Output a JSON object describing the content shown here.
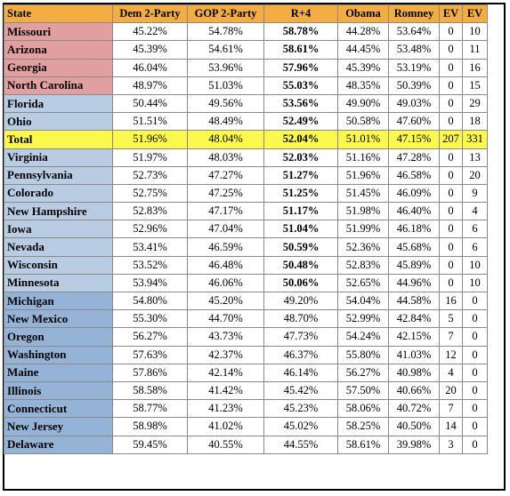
{
  "columns": [
    "State",
    "Dem 2-Party",
    "GOP 2-Party",
    "R+4",
    "Obama",
    "Romney",
    "EV",
    "EV"
  ],
  "colors": {
    "header": "#f4ad43",
    "red_states": "#e19fa0",
    "light_blue_states": "#b8cce4",
    "blue_states": "#95b3d7",
    "total_row": "#fdf84d"
  },
  "rows": [
    {
      "state": "Missouri",
      "dem": "45.22%",
      "gop": "54.78%",
      "r4": "58.78%",
      "obama": "44.28%",
      "romney": "53.64%",
      "ev1": "0",
      "ev2": "10",
      "group": "red"
    },
    {
      "state": "Arizona",
      "dem": "45.39%",
      "gop": "54.61%",
      "r4": "58.61%",
      "obama": "44.45%",
      "romney": "53.48%",
      "ev1": "0",
      "ev2": "11",
      "group": "red"
    },
    {
      "state": "Georgia",
      "dem": "46.04%",
      "gop": "53.96%",
      "r4": "57.96%",
      "obama": "45.39%",
      "romney": "53.19%",
      "ev1": "0",
      "ev2": "16",
      "group": "red"
    },
    {
      "state": "North Carolina",
      "dem": "48.97%",
      "gop": "51.03%",
      "r4": "55.03%",
      "obama": "48.35%",
      "romney": "50.39%",
      "ev1": "0",
      "ev2": "15",
      "group": "red"
    },
    {
      "state": "Florida",
      "dem": "50.44%",
      "gop": "49.56%",
      "r4": "53.56%",
      "obama": "49.90%",
      "romney": "49.03%",
      "ev1": "0",
      "ev2": "29",
      "group": "lblue"
    },
    {
      "state": "Ohio",
      "dem": "51.51%",
      "gop": "48.49%",
      "r4": "52.49%",
      "obama": "50.58%",
      "romney": "47.60%",
      "ev1": "0",
      "ev2": "18",
      "group": "lblue"
    },
    {
      "state": "Total",
      "dem": "51.96%",
      "gop": "48.04%",
      "r4": "52.04%",
      "obama": "51.01%",
      "romney": "47.15%",
      "ev1": "207",
      "ev2": "331",
      "group": "total"
    },
    {
      "state": "Virginia",
      "dem": "51.97%",
      "gop": "48.03%",
      "r4": "52.03%",
      "obama": "51.16%",
      "romney": "47.28%",
      "ev1": "0",
      "ev2": "13",
      "group": "lblue"
    },
    {
      "state": "Pennsylvania",
      "dem": "52.73%",
      "gop": "47.27%",
      "r4": "51.27%",
      "obama": "51.96%",
      "romney": "46.58%",
      "ev1": "0",
      "ev2": "20",
      "group": "lblue"
    },
    {
      "state": "Colorado",
      "dem": "52.75%",
      "gop": "47.25%",
      "r4": "51.25%",
      "obama": "51.45%",
      "romney": "46.09%",
      "ev1": "0",
      "ev2": "9",
      "group": "lblue"
    },
    {
      "state": "New Hampshire",
      "dem": "52.83%",
      "gop": "47.17%",
      "r4": "51.17%",
      "obama": "51.98%",
      "romney": "46.40%",
      "ev1": "0",
      "ev2": "4",
      "group": "lblue"
    },
    {
      "state": "Iowa",
      "dem": "52.96%",
      "gop": "47.04%",
      "r4": "51.04%",
      "obama": "51.99%",
      "romney": "46.18%",
      "ev1": "0",
      "ev2": "6",
      "group": "lblue"
    },
    {
      "state": "Nevada",
      "dem": "53.41%",
      "gop": "46.59%",
      "r4": "50.59%",
      "obama": "52.36%",
      "romney": "45.68%",
      "ev1": "0",
      "ev2": "6",
      "group": "lblue"
    },
    {
      "state": "Wisconsin",
      "dem": "53.52%",
      "gop": "46.48%",
      "r4": "50.48%",
      "obama": "52.83%",
      "romney": "45.89%",
      "ev1": "0",
      "ev2": "10",
      "group": "lblue"
    },
    {
      "state": "Minnesota",
      "dem": "53.94%",
      "gop": "46.06%",
      "r4": "50.06%",
      "obama": "52.65%",
      "romney": "44.96%",
      "ev1": "0",
      "ev2": "10",
      "group": "lblue"
    },
    {
      "state": "Michigan",
      "dem": "54.80%",
      "gop": "45.20%",
      "r4": "49.20%",
      "obama": "54.04%",
      "romney": "44.58%",
      "ev1": "16",
      "ev2": "0",
      "group": "mblue"
    },
    {
      "state": "New Mexico",
      "dem": "55.30%",
      "gop": "44.70%",
      "r4": "48.70%",
      "obama": "52.99%",
      "romney": "42.84%",
      "ev1": "5",
      "ev2": "0",
      "group": "mblue"
    },
    {
      "state": "Oregon",
      "dem": "56.27%",
      "gop": "43.73%",
      "r4": "47.73%",
      "obama": "54.24%",
      "romney": "42.15%",
      "ev1": "7",
      "ev2": "0",
      "group": "mblue"
    },
    {
      "state": "Washington",
      "dem": "57.63%",
      "gop": "42.37%",
      "r4": "46.37%",
      "obama": "55.80%",
      "romney": "41.03%",
      "ev1": "12",
      "ev2": "0",
      "group": "mblue"
    },
    {
      "state": "Maine",
      "dem": "57.86%",
      "gop": "42.14%",
      "r4": "46.14%",
      "obama": "56.27%",
      "romney": "40.98%",
      "ev1": "4",
      "ev2": "0",
      "group": "mblue"
    },
    {
      "state": "Illinois",
      "dem": "58.58%",
      "gop": "41.42%",
      "r4": "45.42%",
      "obama": "57.50%",
      "romney": "40.66%",
      "ev1": "20",
      "ev2": "0",
      "group": "mblue"
    },
    {
      "state": "Connecticut",
      "dem": "58.77%",
      "gop": "41.23%",
      "r4": "45.23%",
      "obama": "58.06%",
      "romney": "40.72%",
      "ev1": "7",
      "ev2": "0",
      "group": "mblue"
    },
    {
      "state": "New Jersey",
      "dem": "58.98%",
      "gop": "41.02%",
      "r4": "45.02%",
      "obama": "58.25%",
      "romney": "40.50%",
      "ev1": "14",
      "ev2": "0",
      "group": "mblue"
    },
    {
      "state": "Delaware",
      "dem": "59.45%",
      "gop": "40.55%",
      "r4": "44.55%",
      "obama": "58.61%",
      "romney": "39.98%",
      "ev1": "3",
      "ev2": "0",
      "group": "mblue"
    }
  ]
}
